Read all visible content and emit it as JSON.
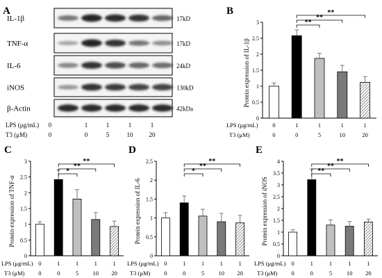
{
  "figure": {
    "panel_a": {
      "letter": "A",
      "blots": [
        {
          "name": "IL-1β",
          "kd": "17kD"
        },
        {
          "name": "TNF-α",
          "kd": "17kD"
        },
        {
          "name": "IL-6",
          "kd": "24kD"
        },
        {
          "name": "iNOS",
          "kd": "130kD"
        },
        {
          "name": "β-Actin",
          "kd": "42kDa"
        }
      ],
      "row1_label": "LPS (μg/mL)",
      "row2_label": "T3 (μM)",
      "lps": [
        "0",
        "1",
        "1",
        "1",
        "1"
      ],
      "t3": [
        "0",
        "0",
        "5",
        "10",
        "20"
      ]
    }
  },
  "chart_data": [
    {
      "panel": "B",
      "type": "bar",
      "ylabel": "Protein expression of IL-1β",
      "ylim": [
        0,
        3
      ],
      "yticks": [
        "0",
        "0.5",
        "1",
        "1.5",
        "2",
        "2.5",
        "3"
      ],
      "values": [
        1.0,
        2.58,
        1.87,
        1.45,
        1.12
      ],
      "errors": [
        0.1,
        0.18,
        0.16,
        0.2,
        0.18
      ],
      "brackets": [
        {
          "from": 1,
          "to": 2,
          "label": "**"
        },
        {
          "from": 1,
          "to": 3,
          "label": "**"
        },
        {
          "from": 1,
          "to": 4,
          "label": "**"
        }
      ],
      "row1_label": "LPS (μg/mL)",
      "row2_label": "T3 (μM)",
      "lps": [
        "0",
        "1",
        "1",
        "1",
        "1"
      ],
      "t3": [
        "0",
        "0",
        "5",
        "10",
        "20"
      ]
    },
    {
      "panel": "C",
      "type": "bar",
      "ylabel": "Protein expression of TNF-α",
      "ylim": [
        0,
        3
      ],
      "yticks": [
        "0",
        "0.5",
        "1",
        "1.5",
        "2",
        "2.5",
        "3"
      ],
      "values": [
        1.0,
        2.42,
        1.8,
        1.15,
        0.93
      ],
      "errors": [
        0.08,
        0.3,
        0.3,
        0.22,
        0.17
      ],
      "brackets": [
        {
          "from": 1,
          "to": 2,
          "label": "*"
        },
        {
          "from": 1,
          "to": 3,
          "label": "**"
        },
        {
          "from": 1,
          "to": 4,
          "label": "**"
        }
      ],
      "row1_label": "LPS (μg/mL)",
      "row2_label": "T3 (μM)",
      "lps": [
        "0",
        "1",
        "1",
        "1",
        "1"
      ],
      "t3": [
        "0",
        "0",
        "5",
        "10",
        "20"
      ]
    },
    {
      "panel": "D",
      "type": "bar",
      "ylabel": "Protein expression of IL-6",
      "ylim": [
        0,
        2.5
      ],
      "yticks": [
        "0",
        "0.5",
        "1",
        "1.5",
        "2",
        "2.5"
      ],
      "values": [
        1.0,
        1.4,
        1.05,
        0.9,
        0.87
      ],
      "errors": [
        0.14,
        0.18,
        0.18,
        0.22,
        0.2
      ],
      "brackets": [
        {
          "from": 1,
          "to": 2,
          "label": "*"
        },
        {
          "from": 1,
          "to": 3,
          "label": "**"
        },
        {
          "from": 1,
          "to": 4,
          "label": "**"
        }
      ],
      "row1_label": "LPS (μg/mL)",
      "row2_label": "T3 (μM)",
      "lps": [
        "0",
        "1",
        "1",
        "1",
        "1"
      ],
      "t3": [
        "0",
        "0",
        "5",
        "10",
        "20"
      ]
    },
    {
      "panel": "E",
      "type": "bar",
      "ylabel": "Protein expression of iNOS",
      "ylim": [
        0,
        4
      ],
      "yticks": [
        "0",
        "0.5",
        "1",
        "1.5",
        "2",
        "2.5",
        "3",
        "3.5",
        "4"
      ],
      "values": [
        1.0,
        3.22,
        1.3,
        1.25,
        1.43
      ],
      "errors": [
        0.1,
        0.45,
        0.22,
        0.2,
        0.12
      ],
      "brackets": [
        {
          "from": 1,
          "to": 2,
          "label": "**"
        },
        {
          "from": 1,
          "to": 3,
          "label": "**"
        },
        {
          "from": 1,
          "to": 4,
          "label": "**"
        }
      ],
      "row1_label": "LPS (μg/mL)",
      "row2_label": "T3 (μM)",
      "lps": [
        "0",
        "1",
        "1",
        "1",
        "1"
      ],
      "t3": [
        "0",
        "0",
        "5",
        "10",
        "20"
      ]
    }
  ],
  "colors": {
    "bar_fills": [
      "#ffffff",
      "#000000",
      "#c0c0c0",
      "#7a7a7a",
      "hatch"
    ],
    "blot_band": "#1a1a1a"
  }
}
